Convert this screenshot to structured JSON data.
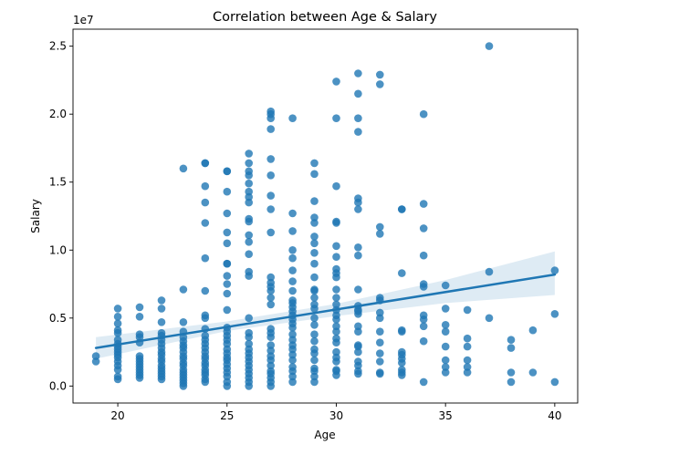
{
  "chart_data": {
    "type": "scatter",
    "title": "Correlation between Age & Salary",
    "xlabel": "Age",
    "ylabel": "Salary",
    "y_offset_label": "1e7",
    "xlim": [
      17.95,
      41.05
    ],
    "ylim": [
      -1250000,
      26250000
    ],
    "x_ticks": [
      20,
      25,
      30,
      35,
      40
    ],
    "x_tick_labels": [
      "20",
      "25",
      "30",
      "35",
      "40"
    ],
    "y_ticks": [
      0,
      5000000,
      10000000,
      15000000,
      20000000,
      25000000
    ],
    "y_tick_labels": [
      "0.0",
      "0.5",
      "1.0",
      "1.5",
      "2.0",
      "2.5"
    ],
    "grid": false,
    "point_color": "#1f77b4",
    "regression": {
      "x_start": 19,
      "y_start": 2800000,
      "x_end": 40,
      "y_end": 8200000,
      "ci": [
        {
          "x": 19,
          "lo": 2000000,
          "hi": 3600000
        },
        {
          "x": 25,
          "lo": 4050000,
          "hi": 4750000
        },
        {
          "x": 30,
          "lo": 5150000,
          "hi": 6050000
        },
        {
          "x": 35,
          "lo": 6100000,
          "hi": 7800000
        },
        {
          "x": 40,
          "lo": 6700000,
          "hi": 9900000
        }
      ]
    },
    "points": [
      [
        19,
        2200000
      ],
      [
        19,
        1800000
      ],
      [
        20,
        5700000
      ],
      [
        20,
        5100000
      ],
      [
        20,
        4600000
      ],
      [
        20,
        4100000
      ],
      [
        20,
        3900000
      ],
      [
        20,
        3400000
      ],
      [
        20,
        3100000
      ],
      [
        20,
        2900000
      ],
      [
        20,
        2700000
      ],
      [
        20,
        2500000
      ],
      [
        20,
        2300000
      ],
      [
        20,
        2100000
      ],
      [
        20,
        1800000
      ],
      [
        20,
        1500000
      ],
      [
        20,
        1200000
      ],
      [
        20,
        700000
      ],
      [
        20,
        500000
      ],
      [
        21,
        5800000
      ],
      [
        21,
        5100000
      ],
      [
        21,
        3800000
      ],
      [
        21,
        3600000
      ],
      [
        21,
        3200000
      ],
      [
        21,
        2200000
      ],
      [
        21,
        2000000
      ],
      [
        21,
        1800000
      ],
      [
        21,
        1600000
      ],
      [
        21,
        1400000
      ],
      [
        21,
        1200000
      ],
      [
        21,
        1000000
      ],
      [
        21,
        800000
      ],
      [
        21,
        600000
      ],
      [
        22,
        6300000
      ],
      [
        22,
        5700000
      ],
      [
        22,
        4700000
      ],
      [
        22,
        3900000
      ],
      [
        22,
        3700000
      ],
      [
        22,
        3400000
      ],
      [
        22,
        3100000
      ],
      [
        22,
        2800000
      ],
      [
        22,
        2500000
      ],
      [
        22,
        2300000
      ],
      [
        22,
        2000000
      ],
      [
        22,
        1800000
      ],
      [
        22,
        1500000
      ],
      [
        22,
        1300000
      ],
      [
        22,
        1100000
      ],
      [
        22,
        900000
      ],
      [
        22,
        700000
      ],
      [
        22,
        500000
      ],
      [
        23,
        16000000
      ],
      [
        23,
        7100000
      ],
      [
        23,
        4700000
      ],
      [
        23,
        4000000
      ],
      [
        23,
        3600000
      ],
      [
        23,
        3300000
      ],
      [
        23,
        3000000
      ],
      [
        23,
        2800000
      ],
      [
        23,
        2500000
      ],
      [
        23,
        2200000
      ],
      [
        23,
        2000000
      ],
      [
        23,
        1700000
      ],
      [
        23,
        1500000
      ],
      [
        23,
        1200000
      ],
      [
        23,
        1000000
      ],
      [
        23,
        800000
      ],
      [
        23,
        600000
      ],
      [
        23,
        400000
      ],
      [
        23,
        200000
      ],
      [
        23,
        0
      ],
      [
        24,
        16400000
      ],
      [
        24,
        16400000
      ],
      [
        24,
        14700000
      ],
      [
        24,
        13500000
      ],
      [
        24,
        12000000
      ],
      [
        24,
        9400000
      ],
      [
        24,
        7000000
      ],
      [
        24,
        5200000
      ],
      [
        24,
        5000000
      ],
      [
        24,
        4200000
      ],
      [
        24,
        3700000
      ],
      [
        24,
        3400000
      ],
      [
        24,
        3100000
      ],
      [
        24,
        2800000
      ],
      [
        24,
        2500000
      ],
      [
        24,
        2200000
      ],
      [
        24,
        2000000
      ],
      [
        24,
        1700000
      ],
      [
        24,
        1500000
      ],
      [
        24,
        1200000
      ],
      [
        24,
        1000000
      ],
      [
        24,
        800000
      ],
      [
        24,
        500000
      ],
      [
        24,
        300000
      ],
      [
        25,
        15800000
      ],
      [
        25,
        15800000
      ],
      [
        25,
        14300000
      ],
      [
        25,
        12700000
      ],
      [
        25,
        11300000
      ],
      [
        25,
        10500000
      ],
      [
        25,
        9000000
      ],
      [
        25,
        9000000
      ],
      [
        25,
        8100000
      ],
      [
        25,
        7500000
      ],
      [
        25,
        6800000
      ],
      [
        25,
        5600000
      ],
      [
        25,
        4300000
      ],
      [
        25,
        4000000
      ],
      [
        25,
        3700000
      ],
      [
        25,
        3400000
      ],
      [
        25,
        3100000
      ],
      [
        25,
        2700000
      ],
      [
        25,
        2400000
      ],
      [
        25,
        2100000
      ],
      [
        25,
        1900000
      ],
      [
        25,
        1600000
      ],
      [
        25,
        1300000
      ],
      [
        25,
        1000000
      ],
      [
        25,
        700000
      ],
      [
        25,
        300000
      ],
      [
        25,
        0
      ],
      [
        26,
        17100000
      ],
      [
        26,
        16400000
      ],
      [
        26,
        15800000
      ],
      [
        26,
        15500000
      ],
      [
        26,
        14900000
      ],
      [
        26,
        14300000
      ],
      [
        26,
        13900000
      ],
      [
        26,
        13500000
      ],
      [
        26,
        12300000
      ],
      [
        26,
        12100000
      ],
      [
        26,
        11100000
      ],
      [
        26,
        10600000
      ],
      [
        26,
        9700000
      ],
      [
        26,
        8400000
      ],
      [
        26,
        8100000
      ],
      [
        26,
        5000000
      ],
      [
        26,
        3900000
      ],
      [
        26,
        3600000
      ],
      [
        26,
        3100000
      ],
      [
        26,
        2700000
      ],
      [
        26,
        2400000
      ],
      [
        26,
        2100000
      ],
      [
        26,
        1800000
      ],
      [
        26,
        1500000
      ],
      [
        26,
        1200000
      ],
      [
        26,
        900000
      ],
      [
        26,
        600000
      ],
      [
        26,
        300000
      ],
      [
        26,
        0
      ],
      [
        27,
        20200000
      ],
      [
        27,
        20000000
      ],
      [
        27,
        19700000
      ],
      [
        27,
        18900000
      ],
      [
        27,
        16700000
      ],
      [
        27,
        15500000
      ],
      [
        27,
        14000000
      ],
      [
        27,
        13000000
      ],
      [
        27,
        11300000
      ],
      [
        27,
        8000000
      ],
      [
        27,
        7600000
      ],
      [
        27,
        7300000
      ],
      [
        27,
        7000000
      ],
      [
        27,
        6500000
      ],
      [
        27,
        6000000
      ],
      [
        27,
        4200000
      ],
      [
        27,
        3900000
      ],
      [
        27,
        3600000
      ],
      [
        27,
        3000000
      ],
      [
        27,
        2600000
      ],
      [
        27,
        2200000
      ],
      [
        27,
        1900000
      ],
      [
        27,
        1500000
      ],
      [
        27,
        1100000
      ],
      [
        27,
        900000
      ],
      [
        27,
        600000
      ],
      [
        27,
        300000
      ],
      [
        27,
        0
      ],
      [
        28,
        19700000
      ],
      [
        28,
        12700000
      ],
      [
        28,
        11400000
      ],
      [
        28,
        10000000
      ],
      [
        28,
        9400000
      ],
      [
        28,
        8500000
      ],
      [
        28,
        7700000
      ],
      [
        28,
        7000000
      ],
      [
        28,
        6300000
      ],
      [
        28,
        6100000
      ],
      [
        28,
        5800000
      ],
      [
        28,
        5500000
      ],
      [
        28,
        5200000
      ],
      [
        28,
        4900000
      ],
      [
        28,
        4600000
      ],
      [
        28,
        4300000
      ],
      [
        28,
        3800000
      ],
      [
        28,
        3400000
      ],
      [
        28,
        3000000
      ],
      [
        28,
        2700000
      ],
      [
        28,
        2300000
      ],
      [
        28,
        1900000
      ],
      [
        28,
        1400000
      ],
      [
        28,
        1100000
      ],
      [
        28,
        700000
      ],
      [
        28,
        300000
      ],
      [
        29,
        16400000
      ],
      [
        29,
        15600000
      ],
      [
        29,
        13600000
      ],
      [
        29,
        12400000
      ],
      [
        29,
        12000000
      ],
      [
        29,
        11000000
      ],
      [
        29,
        10500000
      ],
      [
        29,
        9800000
      ],
      [
        29,
        9000000
      ],
      [
        29,
        8000000
      ],
      [
        29,
        7100000
      ],
      [
        29,
        7000000
      ],
      [
        29,
        6500000
      ],
      [
        29,
        6000000
      ],
      [
        29,
        5700000
      ],
      [
        29,
        5000000
      ],
      [
        29,
        4500000
      ],
      [
        29,
        3800000
      ],
      [
        29,
        3300000
      ],
      [
        29,
        2700000
      ],
      [
        29,
        2400000
      ],
      [
        29,
        1900000
      ],
      [
        29,
        1300000
      ],
      [
        29,
        1100000
      ],
      [
        29,
        700000
      ],
      [
        29,
        300000
      ],
      [
        30,
        22400000
      ],
      [
        30,
        19700000
      ],
      [
        30,
        14700000
      ],
      [
        30,
        12100000
      ],
      [
        30,
        12000000
      ],
      [
        30,
        10300000
      ],
      [
        30,
        9500000
      ],
      [
        30,
        8600000
      ],
      [
        30,
        8300000
      ],
      [
        30,
        8000000
      ],
      [
        30,
        7100000
      ],
      [
        30,
        6500000
      ],
      [
        30,
        6000000
      ],
      [
        30,
        5600000
      ],
      [
        30,
        5200000
      ],
      [
        30,
        4900000
      ],
      [
        30,
        4400000
      ],
      [
        30,
        4000000
      ],
      [
        30,
        3500000
      ],
      [
        30,
        3200000
      ],
      [
        30,
        2500000
      ],
      [
        30,
        2100000
      ],
      [
        30,
        1800000
      ],
      [
        30,
        1200000
      ],
      [
        30,
        1100000
      ],
      [
        30,
        800000
      ],
      [
        31,
        23000000
      ],
      [
        31,
        21500000
      ],
      [
        31,
        19700000
      ],
      [
        31,
        18700000
      ],
      [
        31,
        13800000
      ],
      [
        31,
        13500000
      ],
      [
        31,
        13000000
      ],
      [
        31,
        10200000
      ],
      [
        31,
        9600000
      ],
      [
        31,
        7100000
      ],
      [
        31,
        5900000
      ],
      [
        31,
        5600000
      ],
      [
        31,
        5500000
      ],
      [
        31,
        5300000
      ],
      [
        31,
        4400000
      ],
      [
        31,
        4000000
      ],
      [
        31,
        3000000
      ],
      [
        31,
        2900000
      ],
      [
        31,
        2500000
      ],
      [
        31,
        1800000
      ],
      [
        31,
        1500000
      ],
      [
        31,
        1100000
      ],
      [
        31,
        900000
      ],
      [
        32,
        22900000
      ],
      [
        32,
        22200000
      ],
      [
        32,
        11700000
      ],
      [
        32,
        11200000
      ],
      [
        32,
        6500000
      ],
      [
        32,
        6300000
      ],
      [
        32,
        5400000
      ],
      [
        32,
        5000000
      ],
      [
        32,
        4000000
      ],
      [
        32,
        3200000
      ],
      [
        32,
        2400000
      ],
      [
        32,
        1800000
      ],
      [
        32,
        1000000
      ],
      [
        32,
        900000
      ],
      [
        33,
        13000000
      ],
      [
        33,
        13000000
      ],
      [
        33,
        8300000
      ],
      [
        33,
        4100000
      ],
      [
        33,
        4000000
      ],
      [
        33,
        2500000
      ],
      [
        33,
        2300000
      ],
      [
        33,
        2000000
      ],
      [
        33,
        1700000
      ],
      [
        33,
        1200000
      ],
      [
        33,
        1000000
      ],
      [
        33,
        800000
      ],
      [
        34,
        20000000
      ],
      [
        34,
        13400000
      ],
      [
        34,
        11600000
      ],
      [
        34,
        9600000
      ],
      [
        34,
        7500000
      ],
      [
        34,
        7300000
      ],
      [
        34,
        5200000
      ],
      [
        34,
        4900000
      ],
      [
        34,
        4400000
      ],
      [
        34,
        3300000
      ],
      [
        34,
        300000
      ],
      [
        35,
        7400000
      ],
      [
        35,
        5700000
      ],
      [
        35,
        4500000
      ],
      [
        35,
        4000000
      ],
      [
        35,
        2900000
      ],
      [
        35,
        1900000
      ],
      [
        35,
        1400000
      ],
      [
        35,
        1000000
      ],
      [
        36,
        5600000
      ],
      [
        36,
        3500000
      ],
      [
        36,
        2900000
      ],
      [
        36,
        1900000
      ],
      [
        36,
        1400000
      ],
      [
        36,
        1000000
      ],
      [
        37,
        25000000
      ],
      [
        37,
        8400000
      ],
      [
        37,
        5000000
      ],
      [
        38,
        3400000
      ],
      [
        38,
        2800000
      ],
      [
        38,
        1000000
      ],
      [
        38,
        300000
      ],
      [
        39,
        4100000
      ],
      [
        39,
        1000000
      ],
      [
        40,
        8500000
      ],
      [
        40,
        5300000
      ],
      [
        40,
        300000
      ]
    ]
  }
}
